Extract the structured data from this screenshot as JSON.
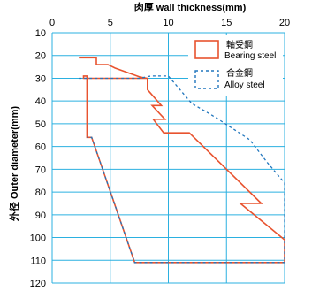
{
  "chart_data": {
    "type": "line",
    "xlabel": "肉厚 wall thickness(mm)",
    "ylabel": "外径 Outer diameter(mm)",
    "xlim": [
      0,
      20
    ],
    "ylim": [
      10,
      120
    ],
    "x_axis_position": "top",
    "y_axis_inverted": true,
    "x_ticks": [
      "0",
      "5",
      "10",
      "15",
      "20"
    ],
    "y_ticks": [
      "10",
      "20",
      "30",
      "40",
      "50",
      "60",
      "70",
      "80",
      "90",
      "100",
      "110",
      "120"
    ],
    "grid": true,
    "grid_color": "#2bb0e0",
    "legend_position": "top-right",
    "series": [
      {
        "name": "軸受鋼\nBearing steel",
        "legend_line1": "軸受鋼",
        "legend_line2": "Bearing steel",
        "color": "#e8532f",
        "style": "solid",
        "points": [
          [
            2.3,
            21
          ],
          [
            3.8,
            21
          ],
          [
            3.8,
            24
          ],
          [
            4.8,
            24
          ],
          [
            5.4,
            25.5
          ],
          [
            7.6,
            29.5
          ],
          [
            8.2,
            30
          ],
          [
            2.7,
            30
          ],
          [
            2.7,
            29
          ],
          [
            3.0,
            29
          ],
          [
            3.0,
            56
          ],
          [
            3.4,
            56
          ],
          [
            7.1,
            111
          ],
          [
            20.0,
            111
          ],
          [
            20.0,
            101
          ],
          [
            16.2,
            85
          ],
          [
            18.0,
            85
          ],
          [
            11.8,
            54
          ],
          [
            9.6,
            54
          ],
          [
            8.7,
            48
          ],
          [
            9.7,
            48
          ],
          [
            8.6,
            42
          ],
          [
            9.4,
            42
          ],
          [
            8.2,
            35
          ],
          [
            8.2,
            30
          ]
        ]
      },
      {
        "name": "合金鋼\nAlloy steel",
        "legend_line1": "合金鋼",
        "legend_line2": "Alloy steel",
        "color": "#2176bd",
        "style": "dashed",
        "points": [
          [
            2.3,
            30
          ],
          [
            7.5,
            30
          ],
          [
            8.5,
            29
          ],
          [
            10.0,
            29
          ],
          [
            12.0,
            41
          ],
          [
            14.0,
            47
          ],
          [
            17.0,
            57
          ],
          [
            18.5,
            67
          ],
          [
            20.0,
            76
          ],
          [
            20.0,
            111
          ],
          [
            7.1,
            111
          ],
          [
            3.4,
            56
          ],
          [
            3.0,
            56
          ]
        ]
      }
    ]
  }
}
